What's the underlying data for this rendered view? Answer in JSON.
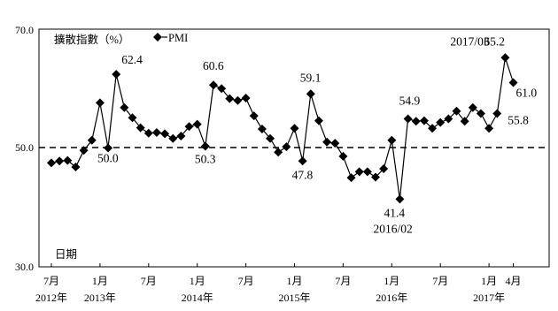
{
  "chart_data": {
    "type": "line",
    "title": "",
    "ylabel": "擴散指數（%）",
    "xlabel": "日期",
    "ylim": [
      30,
      70
    ],
    "yticks": [
      "30.0",
      "50.0",
      "70.0"
    ],
    "reference_line": 50,
    "legend": {
      "position": "top-left",
      "label": "PMI",
      "marker": "diamond"
    },
    "x_start": "2012-07",
    "x_ticks": [
      {
        "month_index": 0,
        "label": "7月",
        "year": "2012年"
      },
      {
        "month_index": 6,
        "label": "1月",
        "year": "2013年"
      },
      {
        "month_index": 12,
        "label": "7月",
        "year": ""
      },
      {
        "month_index": 18,
        "label": "1月",
        "year": "2014年"
      },
      {
        "month_index": 24,
        "label": "7月",
        "year": ""
      },
      {
        "month_index": 30,
        "label": "1月",
        "year": "2015年"
      },
      {
        "month_index": 36,
        "label": "7月",
        "year": ""
      },
      {
        "month_index": 42,
        "label": "1月",
        "year": "2016年"
      },
      {
        "month_index": 48,
        "label": "7月",
        "year": ""
      },
      {
        "month_index": 54,
        "label": "1月",
        "year": "2017年"
      },
      {
        "month_index": 57,
        "label": "4月",
        "year": ""
      }
    ],
    "series": [
      {
        "name": "PMI",
        "values": [
          47.5,
          47.8,
          47.9,
          46.8,
          49.6,
          51.3,
          57.6,
          50.0,
          62.4,
          56.8,
          55.1,
          53.4,
          52.5,
          52.6,
          52.4,
          51.6,
          52.0,
          53.6,
          54.0,
          50.3,
          60.6,
          60.0,
          58.3,
          58.0,
          58.4,
          55.4,
          53.2,
          51.6,
          49.3,
          50.2,
          53.3,
          47.8,
          59.1,
          54.6,
          51.0,
          50.8,
          48.6,
          45.0,
          46.0,
          46.0,
          45.1,
          46.5,
          51.3,
          41.4,
          54.9,
          54.5,
          54.6,
          53.3,
          54.3,
          54.9,
          56.2,
          54.5,
          56.8,
          55.8,
          53.3,
          55.8,
          65.2,
          61.0
        ]
      }
    ],
    "annotations": [
      {
        "month_index": 7,
        "value": 50.0,
        "text": "50.0"
      },
      {
        "month_index": 8,
        "value": 62.4,
        "text": "62.4"
      },
      {
        "month_index": 19,
        "value": 50.3,
        "text": "50.3"
      },
      {
        "month_index": 20,
        "value": 60.6,
        "text": "60.6"
      },
      {
        "month_index": 31,
        "value": 47.8,
        "text": "47.8"
      },
      {
        "month_index": 32,
        "value": 59.1,
        "text": "59.1"
      },
      {
        "month_index": 43,
        "value": 41.4,
        "text": "41.4"
      },
      {
        "month_index": 43,
        "value": 41.4,
        "text": "2016/02"
      },
      {
        "month_index": 44,
        "value": 54.9,
        "text": "54.9"
      },
      {
        "month_index": 56,
        "value": 65.2,
        "text": "2017/03"
      },
      {
        "month_index": 56,
        "value": 65.2,
        "text": "65.2"
      },
      {
        "month_index": 55,
        "value": 55.8,
        "text": "55.8"
      },
      {
        "month_index": 57,
        "value": 61.0,
        "text": "61.0"
      }
    ]
  }
}
